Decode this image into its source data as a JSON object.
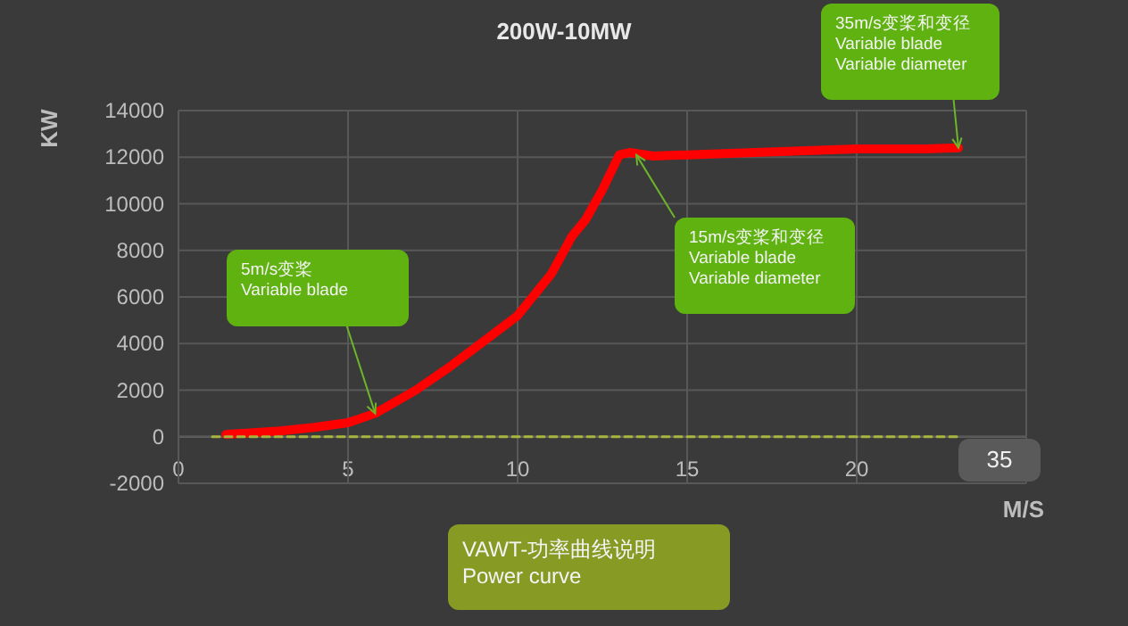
{
  "chart_data": {
    "type": "line",
    "title": "200W-10MW",
    "xlabel": "M/S",
    "ylabel": "KW",
    "series": [
      {
        "color": "#ff0000",
        "line_style": "solid",
        "x": [
          1.4,
          2,
          3,
          4,
          5,
          5.8,
          7,
          8,
          9,
          10,
          11,
          11.6,
          12,
          12.5,
          13,
          13.3,
          14,
          15,
          17,
          20,
          22,
          23
        ],
        "values": [
          100,
          150,
          250,
          400,
          600,
          1000,
          2000,
          3000,
          4100,
          5200,
          7000,
          8600,
          9300,
          10600,
          12100,
          12200,
          12050,
          12100,
          12200,
          12350,
          12350,
          12400
        ]
      },
      {
        "color": "#a9b43c",
        "line_style": "dashed",
        "x": [
          1,
          23
        ],
        "values": [
          0,
          0
        ]
      }
    ],
    "xlim": [
      0,
      25
    ],
    "ylim": [
      -2000,
      14000
    ],
    "xticks": [
      0,
      5,
      10,
      15,
      20
    ],
    "yticks": [
      -2000,
      0,
      2000,
      4000,
      6000,
      8000,
      10000,
      12000,
      14000
    ],
    "grid": true,
    "annotations": [
      {
        "text": "5m/s变桨\nVariable blade",
        "x": 5.8,
        "y": 1000
      },
      {
        "text": "15m/s变桨和变径\nVariable blade\nVariable diameter",
        "x": 13.5,
        "y": 12100
      },
      {
        "text": "35m/s变桨和变径\nVariable blade\nVariable diameter",
        "x": 23,
        "y": 12400
      },
      "VAWT-功率曲线说明\nPower curve",
      "35"
    ]
  }
}
